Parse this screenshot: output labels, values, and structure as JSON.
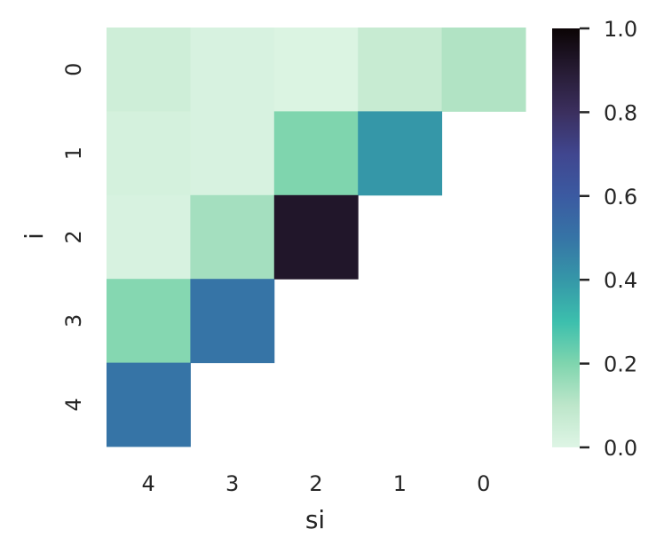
{
  "chart_data": {
    "type": "heatmap",
    "title": "",
    "xlabel": "si",
    "ylabel": "i",
    "x_categories": [
      "4",
      "3",
      "2",
      "1",
      "0"
    ],
    "y_categories": [
      "0",
      "1",
      "2",
      "3",
      "4"
    ],
    "values": [
      [
        0.05,
        0.02,
        0.01,
        0.07,
        0.12
      ],
      [
        0.03,
        0.02,
        0.2,
        0.4,
        null
      ],
      [
        0.02,
        0.14,
        0.92,
        null,
        null
      ],
      [
        0.19,
        0.5,
        null,
        null,
        null
      ],
      [
        0.5,
        null,
        null,
        null,
        null
      ]
    ],
    "vmin": 0.0,
    "vmax": 1.0,
    "colormap": "mako_r",
    "colorbar": {
      "ticks": [
        0.0,
        0.2,
        0.4,
        0.6,
        0.8,
        1.0
      ],
      "tick_labels": [
        "0.0",
        "0.2",
        "0.4",
        "0.6",
        "0.8",
        "1.0"
      ]
    },
    "grid": false
  }
}
